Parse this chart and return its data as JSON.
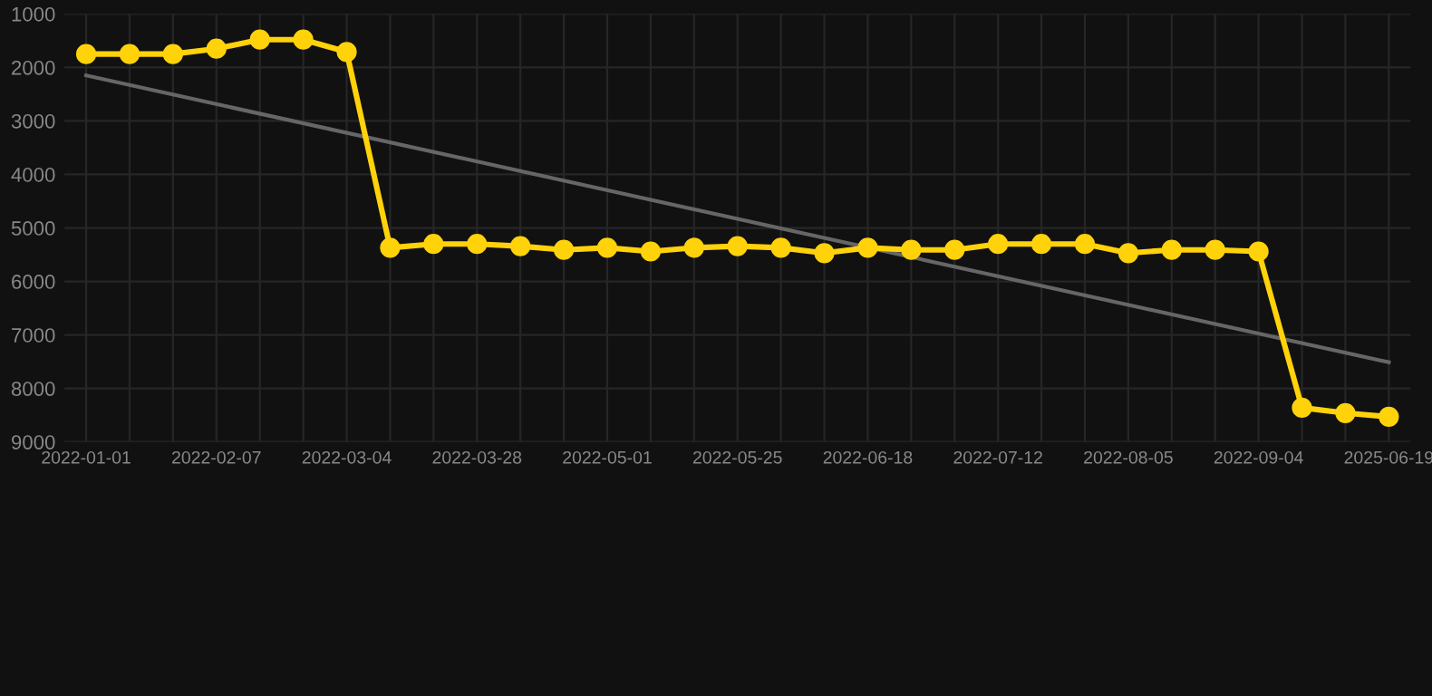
{
  "chart_data": {
    "type": "line",
    "categories": [
      "2022-01-01",
      null,
      null,
      "2022-02-07",
      null,
      null,
      "2022-03-04",
      null,
      null,
      "2022-03-28",
      null,
      null,
      "2022-05-01",
      null,
      null,
      "2022-05-25",
      null,
      null,
      "2022-06-18",
      null,
      null,
      "2022-07-12",
      null,
      null,
      "2022-08-05",
      null,
      null,
      "2022-09-04",
      null,
      null,
      "2025-06-19"
    ],
    "series": [
      {
        "color": "#ffd20a",
        "marker": "circle",
        "values": [
          1750,
          1750,
          1750,
          1650,
          1480,
          1480,
          1710,
          5370,
          5300,
          5300,
          5340,
          5410,
          5370,
          5440,
          5370,
          5340,
          5370,
          5470,
          5370,
          5410,
          5410,
          5300,
          5300,
          5300,
          5470,
          5410,
          5410,
          5440,
          8360,
          8460,
          8530
        ]
      },
      {
        "color": "#666666",
        "marker": "none",
        "values": [
          2150,
          null,
          null,
          null,
          null,
          null,
          null,
          null,
          null,
          null,
          null,
          null,
          null,
          null,
          null,
          null,
          null,
          null,
          null,
          null,
          null,
          null,
          null,
          null,
          null,
          null,
          null,
          null,
          null,
          null,
          7510
        ]
      }
    ],
    "ylim": [
      9000,
      1000
    ],
    "yticks": [
      1000,
      2000,
      3000,
      4000,
      5000,
      6000,
      7000,
      8000,
      9000
    ],
    "grid": true
  }
}
